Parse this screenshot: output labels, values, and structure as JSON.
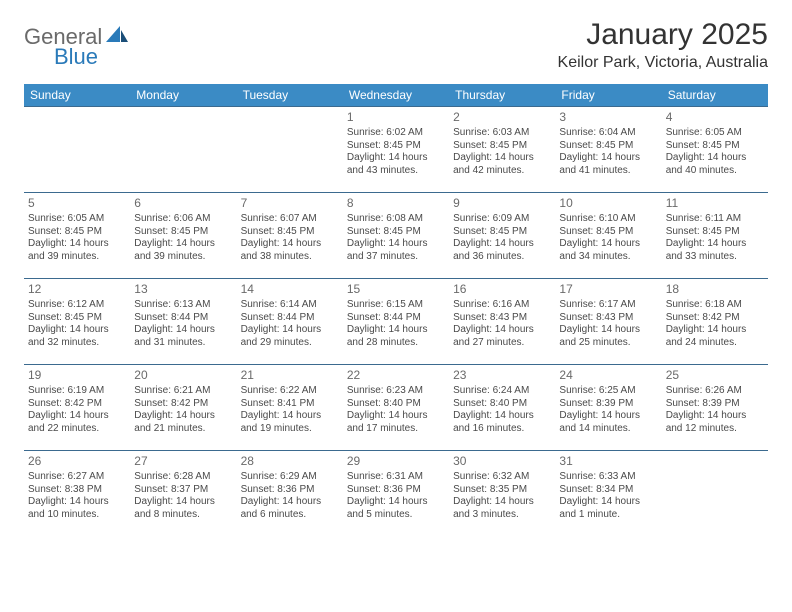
{
  "brand": {
    "general": "General",
    "blue": "Blue",
    "accent_color": "#2a7ab9"
  },
  "title": "January 2025",
  "location": "Keilor Park, Victoria, Australia",
  "weekday_headers": [
    "Sunday",
    "Monday",
    "Tuesday",
    "Wednesday",
    "Thursday",
    "Friday",
    "Saturday"
  ],
  "styles": {
    "header_bg": "#3b8bc5",
    "header_text": "#ffffff",
    "row_border": "#3b6a8f",
    "daynum_color": "#6a6a6a",
    "body_text": "#4a4a4a",
    "font_family": "Arial",
    "title_fontsize": 30,
    "location_fontsize": 16,
    "header_fontsize": 12,
    "daynum_fontsize": 12,
    "cell_fontsize": 10
  },
  "grid": [
    [
      null,
      null,
      null,
      {
        "day": "1",
        "sunrise": "6:02 AM",
        "sunset": "8:45 PM",
        "daylight": "14 hours and 43 minutes."
      },
      {
        "day": "2",
        "sunrise": "6:03 AM",
        "sunset": "8:45 PM",
        "daylight": "14 hours and 42 minutes."
      },
      {
        "day": "3",
        "sunrise": "6:04 AM",
        "sunset": "8:45 PM",
        "daylight": "14 hours and 41 minutes."
      },
      {
        "day": "4",
        "sunrise": "6:05 AM",
        "sunset": "8:45 PM",
        "daylight": "14 hours and 40 minutes."
      }
    ],
    [
      {
        "day": "5",
        "sunrise": "6:05 AM",
        "sunset": "8:45 PM",
        "daylight": "14 hours and 39 minutes."
      },
      {
        "day": "6",
        "sunrise": "6:06 AM",
        "sunset": "8:45 PM",
        "daylight": "14 hours and 39 minutes."
      },
      {
        "day": "7",
        "sunrise": "6:07 AM",
        "sunset": "8:45 PM",
        "daylight": "14 hours and 38 minutes."
      },
      {
        "day": "8",
        "sunrise": "6:08 AM",
        "sunset": "8:45 PM",
        "daylight": "14 hours and 37 minutes."
      },
      {
        "day": "9",
        "sunrise": "6:09 AM",
        "sunset": "8:45 PM",
        "daylight": "14 hours and 36 minutes."
      },
      {
        "day": "10",
        "sunrise": "6:10 AM",
        "sunset": "8:45 PM",
        "daylight": "14 hours and 34 minutes."
      },
      {
        "day": "11",
        "sunrise": "6:11 AM",
        "sunset": "8:45 PM",
        "daylight": "14 hours and 33 minutes."
      }
    ],
    [
      {
        "day": "12",
        "sunrise": "6:12 AM",
        "sunset": "8:45 PM",
        "daylight": "14 hours and 32 minutes."
      },
      {
        "day": "13",
        "sunrise": "6:13 AM",
        "sunset": "8:44 PM",
        "daylight": "14 hours and 31 minutes."
      },
      {
        "day": "14",
        "sunrise": "6:14 AM",
        "sunset": "8:44 PM",
        "daylight": "14 hours and 29 minutes."
      },
      {
        "day": "15",
        "sunrise": "6:15 AM",
        "sunset": "8:44 PM",
        "daylight": "14 hours and 28 minutes."
      },
      {
        "day": "16",
        "sunrise": "6:16 AM",
        "sunset": "8:43 PM",
        "daylight": "14 hours and 27 minutes."
      },
      {
        "day": "17",
        "sunrise": "6:17 AM",
        "sunset": "8:43 PM",
        "daylight": "14 hours and 25 minutes."
      },
      {
        "day": "18",
        "sunrise": "6:18 AM",
        "sunset": "8:42 PM",
        "daylight": "14 hours and 24 minutes."
      }
    ],
    [
      {
        "day": "19",
        "sunrise": "6:19 AM",
        "sunset": "8:42 PM",
        "daylight": "14 hours and 22 minutes."
      },
      {
        "day": "20",
        "sunrise": "6:21 AM",
        "sunset": "8:42 PM",
        "daylight": "14 hours and 21 minutes."
      },
      {
        "day": "21",
        "sunrise": "6:22 AM",
        "sunset": "8:41 PM",
        "daylight": "14 hours and 19 minutes."
      },
      {
        "day": "22",
        "sunrise": "6:23 AM",
        "sunset": "8:40 PM",
        "daylight": "14 hours and 17 minutes."
      },
      {
        "day": "23",
        "sunrise": "6:24 AM",
        "sunset": "8:40 PM",
        "daylight": "14 hours and 16 minutes."
      },
      {
        "day": "24",
        "sunrise": "6:25 AM",
        "sunset": "8:39 PM",
        "daylight": "14 hours and 14 minutes."
      },
      {
        "day": "25",
        "sunrise": "6:26 AM",
        "sunset": "8:39 PM",
        "daylight": "14 hours and 12 minutes."
      }
    ],
    [
      {
        "day": "26",
        "sunrise": "6:27 AM",
        "sunset": "8:38 PM",
        "daylight": "14 hours and 10 minutes."
      },
      {
        "day": "27",
        "sunrise": "6:28 AM",
        "sunset": "8:37 PM",
        "daylight": "14 hours and 8 minutes."
      },
      {
        "day": "28",
        "sunrise": "6:29 AM",
        "sunset": "8:36 PM",
        "daylight": "14 hours and 6 minutes."
      },
      {
        "day": "29",
        "sunrise": "6:31 AM",
        "sunset": "8:36 PM",
        "daylight": "14 hours and 5 minutes."
      },
      {
        "day": "30",
        "sunrise": "6:32 AM",
        "sunset": "8:35 PM",
        "daylight": "14 hours and 3 minutes."
      },
      {
        "day": "31",
        "sunrise": "6:33 AM",
        "sunset": "8:34 PM",
        "daylight": "14 hours and 1 minute."
      },
      null
    ]
  ],
  "labels": {
    "sunrise": "Sunrise:",
    "sunset": "Sunset:",
    "daylight": "Daylight:"
  }
}
